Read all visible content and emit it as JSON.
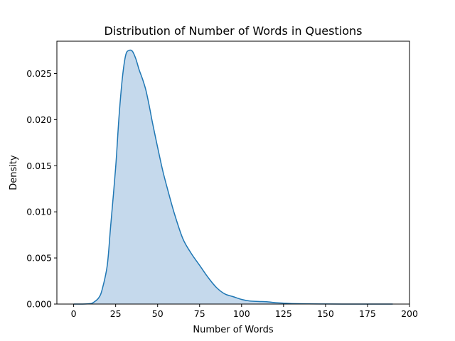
{
  "chart_data": {
    "type": "area",
    "title": "Distribution of Number of Words in Questions",
    "xlabel": "Number of Words",
    "ylabel": "Density",
    "xlim": [
      -10,
      200
    ],
    "ylim": [
      0,
      0.0285
    ],
    "x_ticks": [
      0,
      25,
      50,
      75,
      100,
      125,
      150,
      175,
      200
    ],
    "y_ticks": [
      0.0,
      0.005,
      0.01,
      0.015,
      0.02,
      0.025
    ],
    "y_tick_labels": [
      "0.000",
      "0.005",
      "0.010",
      "0.015",
      "0.020",
      "0.025"
    ],
    "grid": false,
    "colors": {
      "line": "#1f77b4",
      "fill": "#c5d9ec"
    },
    "series": [
      {
        "x": [
          0,
          5,
          10,
          12,
          15,
          17,
          20,
          22,
          25,
          27,
          29,
          31,
          33,
          35,
          37,
          39,
          41,
          43,
          45,
          47,
          50,
          53,
          56,
          60,
          65,
          70,
          75,
          80,
          85,
          90,
          95,
          100,
          105,
          110,
          115,
          120,
          125,
          130,
          140,
          150,
          160,
          170,
          180,
          190
        ],
        "y": [
          0,
          0,
          5e-05,
          0.0002,
          0.0007,
          0.0016,
          0.0042,
          0.0084,
          0.0148,
          0.0203,
          0.0245,
          0.027,
          0.0275,
          0.0274,
          0.0266,
          0.0254,
          0.0244,
          0.0232,
          0.0215,
          0.0196,
          0.017,
          0.0145,
          0.0124,
          0.0098,
          0.0071,
          0.0055,
          0.0042,
          0.0029,
          0.0018,
          0.0011,
          0.0008,
          0.0005,
          0.00033,
          0.00028,
          0.00025,
          0.00015,
          0.0001,
          5e-05,
          2e-05,
          1e-05,
          0,
          0,
          0,
          0
        ]
      }
    ]
  }
}
